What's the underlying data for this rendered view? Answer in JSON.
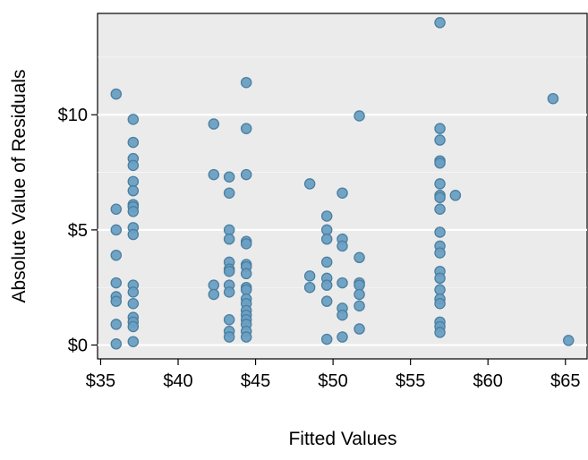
{
  "chart_data": {
    "type": "scatter",
    "title": "",
    "xlabel": "Fitted Values",
    "ylabel": "Absolute Value of Residuals",
    "xlim": [
      34.8,
      66.4
    ],
    "ylim": [
      -0.6,
      14.4
    ],
    "xticks": [
      35,
      40,
      45,
      50,
      55,
      60,
      65
    ],
    "xtick_labels": [
      "$35",
      "$40",
      "$45",
      "$50",
      "$55",
      "$60",
      "$65"
    ],
    "yticks": [
      0,
      5,
      10
    ],
    "ytick_labels": [
      "$0",
      "$5",
      "$10"
    ],
    "grid": "horizontal white lines on gray panel",
    "colors": {
      "panel": "#ebebeb",
      "point_fill": "#6a9fc3",
      "point_edge": "#4a7fa0",
      "grid": "#ffffff"
    },
    "points": [
      [
        36.0,
        10.9
      ],
      [
        36.0,
        5.9
      ],
      [
        36.0,
        5.0
      ],
      [
        36.0,
        3.9
      ],
      [
        36.0,
        2.7
      ],
      [
        36.0,
        2.1
      ],
      [
        36.0,
        1.9
      ],
      [
        36.0,
        0.9
      ],
      [
        36.0,
        0.05
      ],
      [
        37.1,
        9.8
      ],
      [
        37.1,
        8.8
      ],
      [
        37.1,
        8.1
      ],
      [
        37.1,
        7.8
      ],
      [
        37.1,
        7.1
      ],
      [
        37.1,
        6.7
      ],
      [
        37.1,
        6.1
      ],
      [
        37.1,
        6.0
      ],
      [
        37.1,
        5.8
      ],
      [
        37.1,
        5.1
      ],
      [
        37.1,
        4.8
      ],
      [
        37.1,
        2.6
      ],
      [
        37.1,
        2.3
      ],
      [
        37.1,
        1.8
      ],
      [
        37.1,
        1.2
      ],
      [
        37.1,
        1.0
      ],
      [
        37.1,
        0.8
      ],
      [
        37.1,
        0.15
      ],
      [
        42.3,
        9.6
      ],
      [
        42.3,
        7.4
      ],
      [
        42.3,
        2.6
      ],
      [
        42.3,
        2.2
      ],
      [
        43.3,
        7.3
      ],
      [
        43.3,
        6.6
      ],
      [
        43.3,
        5.0
      ],
      [
        43.3,
        4.6
      ],
      [
        43.3,
        3.6
      ],
      [
        43.3,
        3.3
      ],
      [
        43.3,
        3.2
      ],
      [
        43.3,
        2.6
      ],
      [
        43.3,
        2.3
      ],
      [
        43.3,
        1.1
      ],
      [
        43.3,
        0.6
      ],
      [
        43.3,
        0.35
      ],
      [
        44.4,
        11.4
      ],
      [
        44.4,
        9.4
      ],
      [
        44.4,
        7.4
      ],
      [
        44.4,
        4.5
      ],
      [
        44.4,
        4.4
      ],
      [
        44.4,
        3.5
      ],
      [
        44.4,
        3.4
      ],
      [
        44.4,
        3.1
      ],
      [
        44.4,
        2.5
      ],
      [
        44.4,
        2.4
      ],
      [
        44.4,
        2.0
      ],
      [
        44.4,
        1.8
      ],
      [
        44.4,
        1.5
      ],
      [
        44.4,
        1.3
      ],
      [
        44.4,
        1.1
      ],
      [
        44.4,
        0.9
      ],
      [
        44.4,
        0.6
      ],
      [
        44.4,
        0.35
      ],
      [
        48.5,
        7.0
      ],
      [
        48.5,
        3.0
      ],
      [
        48.5,
        2.5
      ],
      [
        49.6,
        5.6
      ],
      [
        49.6,
        5.0
      ],
      [
        49.6,
        4.6
      ],
      [
        49.6,
        3.6
      ],
      [
        49.6,
        2.9
      ],
      [
        49.6,
        2.6
      ],
      [
        49.6,
        1.9
      ],
      [
        49.6,
        0.25
      ],
      [
        50.6,
        6.6
      ],
      [
        50.6,
        4.6
      ],
      [
        50.6,
        4.3
      ],
      [
        50.6,
        2.7
      ],
      [
        50.6,
        1.6
      ],
      [
        50.6,
        1.3
      ],
      [
        50.6,
        0.35
      ],
      [
        51.7,
        9.95
      ],
      [
        51.7,
        3.8
      ],
      [
        51.7,
        2.7
      ],
      [
        51.7,
        2.6
      ],
      [
        51.7,
        2.2
      ],
      [
        51.7,
        1.7
      ],
      [
        51.7,
        0.7
      ],
      [
        56.9,
        14.0
      ],
      [
        56.9,
        9.4
      ],
      [
        56.9,
        8.9
      ],
      [
        56.9,
        8.0
      ],
      [
        56.9,
        7.9
      ],
      [
        56.9,
        7.0
      ],
      [
        56.9,
        6.5
      ],
      [
        56.9,
        6.4
      ],
      [
        56.9,
        5.9
      ],
      [
        56.9,
        4.9
      ],
      [
        56.9,
        4.3
      ],
      [
        56.9,
        4.0
      ],
      [
        56.9,
        3.2
      ],
      [
        56.9,
        2.9
      ],
      [
        56.9,
        2.4
      ],
      [
        56.9,
        2.0
      ],
      [
        56.9,
        1.8
      ],
      [
        56.9,
        1.0
      ],
      [
        56.9,
        0.8
      ],
      [
        56.9,
        0.55
      ],
      [
        57.9,
        6.5
      ],
      [
        64.2,
        10.7
      ],
      [
        65.2,
        0.2
      ]
    ]
  }
}
